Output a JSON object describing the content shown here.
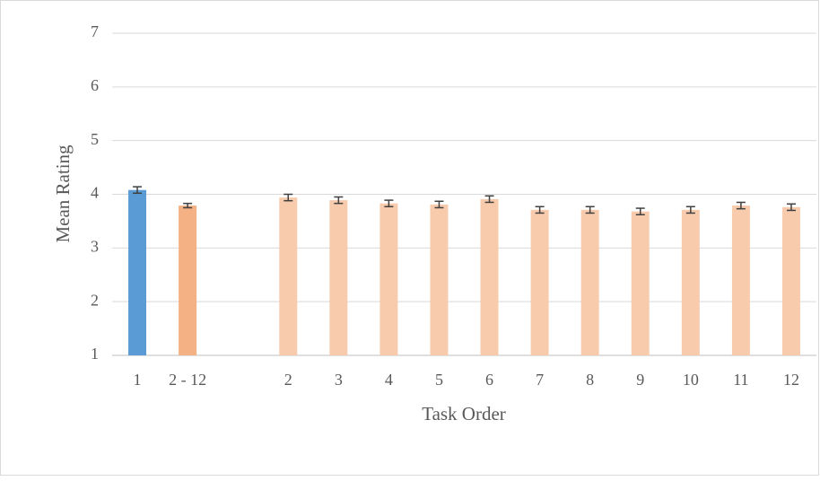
{
  "chart_data": {
    "type": "bar",
    "x_label": "Task Order",
    "y_label": "Mean Rating",
    "categories": [
      "1",
      "2 - 12",
      null,
      "2",
      "3",
      "4",
      "5",
      "6",
      "7",
      "8",
      "9",
      "10",
      "11",
      "12"
    ],
    "values": [
      4.08,
      3.79,
      null,
      3.94,
      3.89,
      3.83,
      3.81,
      3.91,
      3.71,
      3.71,
      3.68,
      3.71,
      3.79,
      3.76
    ],
    "errors": [
      0.06,
      0.04,
      null,
      0.06,
      0.06,
      0.06,
      0.06,
      0.06,
      0.06,
      0.06,
      0.06,
      0.06,
      0.06,
      0.06
    ],
    "colors": [
      "#5b9bd5",
      "#f4b183",
      null,
      "#f8cbad",
      "#f8cbad",
      "#f8cbad",
      "#f8cbad",
      "#f8cbad",
      "#f8cbad",
      "#f8cbad",
      "#f8cbad",
      "#f8cbad",
      "#f8cbad",
      "#f8cbad"
    ],
    "error_color": "#404040",
    "ylim": [
      1,
      7
    ],
    "yticks": [
      1,
      2,
      3,
      4,
      5,
      6,
      7
    ],
    "grid": true
  }
}
